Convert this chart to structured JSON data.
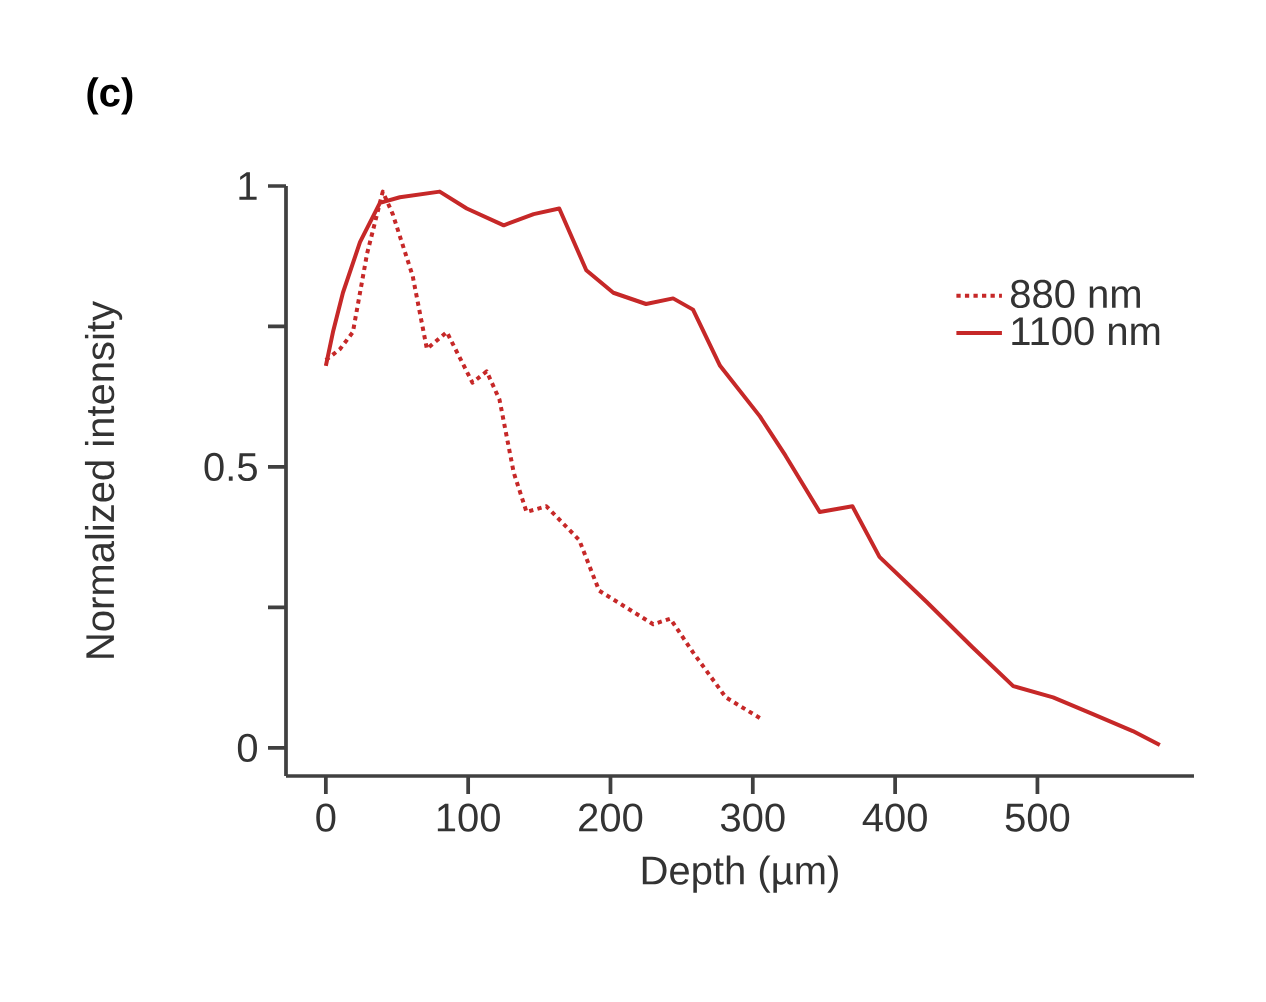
{
  "chart_data": {
    "type": "line",
    "title": "(c)",
    "xlabel": "Depth (µm)",
    "ylabel": "Normalized intensity",
    "xlim": [
      -28,
      610
    ],
    "ylim": [
      -0.05,
      1
    ],
    "xticks": [
      0,
      100,
      200,
      300,
      400,
      500
    ],
    "yticks": [
      0,
      {
        "value": 0.25,
        "label": null
      },
      0.5,
      {
        "value": 0.75,
        "label": null
      },
      1
    ],
    "legend": "top right",
    "grid": false,
    "marker": "none",
    "series": [
      {
        "name": "880 nm",
        "color": "#c62828",
        "line_style": "dotted",
        "x": [
          0,
          10,
          19,
          29,
          40,
          47,
          61,
          71,
          85,
          103,
          113,
          122,
          132,
          141,
          155,
          178,
          192,
          211,
          230,
          242,
          258,
          281,
          307
        ],
        "values": [
          0.69,
          0.71,
          0.74,
          0.88,
          0.99,
          0.95,
          0.84,
          0.71,
          0.74,
          0.65,
          0.67,
          0.62,
          0.49,
          0.42,
          0.43,
          0.37,
          0.28,
          0.25,
          0.22,
          0.23,
          0.17,
          0.09,
          0.05
        ]
      },
      {
        "name": "1100 nm",
        "color": "#c62828",
        "line_style": "solid",
        "x": [
          0,
          5,
          12,
          24,
          38,
          52,
          80,
          99,
          125,
          146,
          164,
          183,
          202,
          225,
          244,
          258,
          277,
          305,
          323,
          347,
          370,
          389,
          422,
          454,
          483,
          511,
          539,
          567,
          586
        ],
        "values": [
          0.68,
          0.74,
          0.81,
          0.9,
          0.97,
          0.98,
          0.99,
          0.96,
          0.93,
          0.95,
          0.96,
          0.85,
          0.81,
          0.79,
          0.8,
          0.78,
          0.68,
          0.59,
          0.52,
          0.42,
          0.43,
          0.34,
          0.26,
          0.18,
          0.11,
          0.09,
          0.06,
          0.03,
          0.005
        ]
      }
    ]
  }
}
